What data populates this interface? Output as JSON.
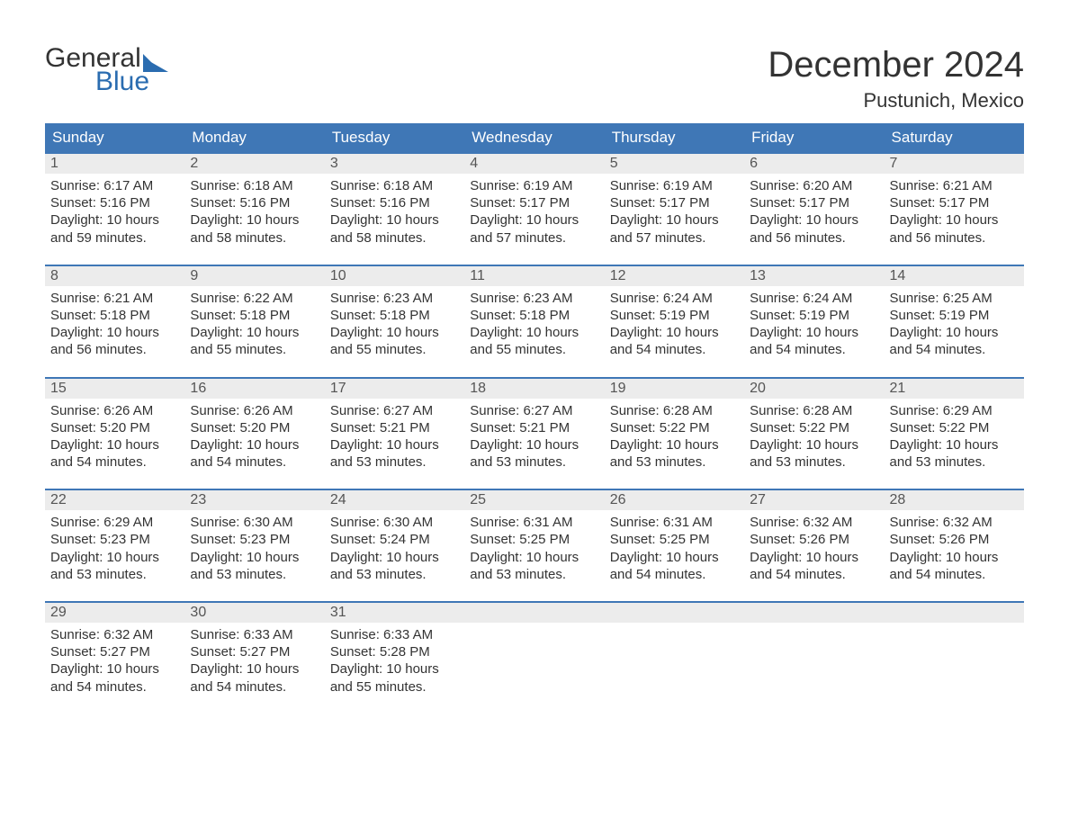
{
  "brand": {
    "line1": "General",
    "line2": "Blue"
  },
  "title": "December 2024",
  "location": "Pustunich, Mexico",
  "colors": {
    "header_bg": "#3f77b6",
    "header_text": "#ffffff",
    "week_divider": "#3f77b6",
    "daynum_bg": "#ececec",
    "daynum_text": "#555555",
    "body_text": "#333333",
    "logo_accent": "#2a6cb0",
    "page_bg": "#ffffff"
  },
  "typography": {
    "title_fontsize": 40,
    "location_fontsize": 22,
    "weekday_fontsize": 17,
    "daynum_fontsize": 16,
    "body_fontsize": 15,
    "logo_fontsize": 30
  },
  "layout": {
    "columns": 7,
    "rows": 5,
    "start_weekday_index": 0
  },
  "weekdays": [
    "Sunday",
    "Monday",
    "Tuesday",
    "Wednesday",
    "Thursday",
    "Friday",
    "Saturday"
  ],
  "days": [
    {
      "n": 1,
      "sunrise": "6:17 AM",
      "sunset": "5:16 PM",
      "daylight": "10 hours and 59 minutes."
    },
    {
      "n": 2,
      "sunrise": "6:18 AM",
      "sunset": "5:16 PM",
      "daylight": "10 hours and 58 minutes."
    },
    {
      "n": 3,
      "sunrise": "6:18 AM",
      "sunset": "5:16 PM",
      "daylight": "10 hours and 58 minutes."
    },
    {
      "n": 4,
      "sunrise": "6:19 AM",
      "sunset": "5:17 PM",
      "daylight": "10 hours and 57 minutes."
    },
    {
      "n": 5,
      "sunrise": "6:19 AM",
      "sunset": "5:17 PM",
      "daylight": "10 hours and 57 minutes."
    },
    {
      "n": 6,
      "sunrise": "6:20 AM",
      "sunset": "5:17 PM",
      "daylight": "10 hours and 56 minutes."
    },
    {
      "n": 7,
      "sunrise": "6:21 AM",
      "sunset": "5:17 PM",
      "daylight": "10 hours and 56 minutes."
    },
    {
      "n": 8,
      "sunrise": "6:21 AM",
      "sunset": "5:18 PM",
      "daylight": "10 hours and 56 minutes."
    },
    {
      "n": 9,
      "sunrise": "6:22 AM",
      "sunset": "5:18 PM",
      "daylight": "10 hours and 55 minutes."
    },
    {
      "n": 10,
      "sunrise": "6:23 AM",
      "sunset": "5:18 PM",
      "daylight": "10 hours and 55 minutes."
    },
    {
      "n": 11,
      "sunrise": "6:23 AM",
      "sunset": "5:18 PM",
      "daylight": "10 hours and 55 minutes."
    },
    {
      "n": 12,
      "sunrise": "6:24 AM",
      "sunset": "5:19 PM",
      "daylight": "10 hours and 54 minutes."
    },
    {
      "n": 13,
      "sunrise": "6:24 AM",
      "sunset": "5:19 PM",
      "daylight": "10 hours and 54 minutes."
    },
    {
      "n": 14,
      "sunrise": "6:25 AM",
      "sunset": "5:19 PM",
      "daylight": "10 hours and 54 minutes."
    },
    {
      "n": 15,
      "sunrise": "6:26 AM",
      "sunset": "5:20 PM",
      "daylight": "10 hours and 54 minutes."
    },
    {
      "n": 16,
      "sunrise": "6:26 AM",
      "sunset": "5:20 PM",
      "daylight": "10 hours and 54 minutes."
    },
    {
      "n": 17,
      "sunrise": "6:27 AM",
      "sunset": "5:21 PM",
      "daylight": "10 hours and 53 minutes."
    },
    {
      "n": 18,
      "sunrise": "6:27 AM",
      "sunset": "5:21 PM",
      "daylight": "10 hours and 53 minutes."
    },
    {
      "n": 19,
      "sunrise": "6:28 AM",
      "sunset": "5:22 PM",
      "daylight": "10 hours and 53 minutes."
    },
    {
      "n": 20,
      "sunrise": "6:28 AM",
      "sunset": "5:22 PM",
      "daylight": "10 hours and 53 minutes."
    },
    {
      "n": 21,
      "sunrise": "6:29 AM",
      "sunset": "5:22 PM",
      "daylight": "10 hours and 53 minutes."
    },
    {
      "n": 22,
      "sunrise": "6:29 AM",
      "sunset": "5:23 PM",
      "daylight": "10 hours and 53 minutes."
    },
    {
      "n": 23,
      "sunrise": "6:30 AM",
      "sunset": "5:23 PM",
      "daylight": "10 hours and 53 minutes."
    },
    {
      "n": 24,
      "sunrise": "6:30 AM",
      "sunset": "5:24 PM",
      "daylight": "10 hours and 53 minutes."
    },
    {
      "n": 25,
      "sunrise": "6:31 AM",
      "sunset": "5:25 PM",
      "daylight": "10 hours and 53 minutes."
    },
    {
      "n": 26,
      "sunrise": "6:31 AM",
      "sunset": "5:25 PM",
      "daylight": "10 hours and 54 minutes."
    },
    {
      "n": 27,
      "sunrise": "6:32 AM",
      "sunset": "5:26 PM",
      "daylight": "10 hours and 54 minutes."
    },
    {
      "n": 28,
      "sunrise": "6:32 AM",
      "sunset": "5:26 PM",
      "daylight": "10 hours and 54 minutes."
    },
    {
      "n": 29,
      "sunrise": "6:32 AM",
      "sunset": "5:27 PM",
      "daylight": "10 hours and 54 minutes."
    },
    {
      "n": 30,
      "sunrise": "6:33 AM",
      "sunset": "5:27 PM",
      "daylight": "10 hours and 54 minutes."
    },
    {
      "n": 31,
      "sunrise": "6:33 AM",
      "sunset": "5:28 PM",
      "daylight": "10 hours and 55 minutes."
    }
  ],
  "labels": {
    "sunrise": "Sunrise: ",
    "sunset": "Sunset: ",
    "daylight": "Daylight: "
  }
}
